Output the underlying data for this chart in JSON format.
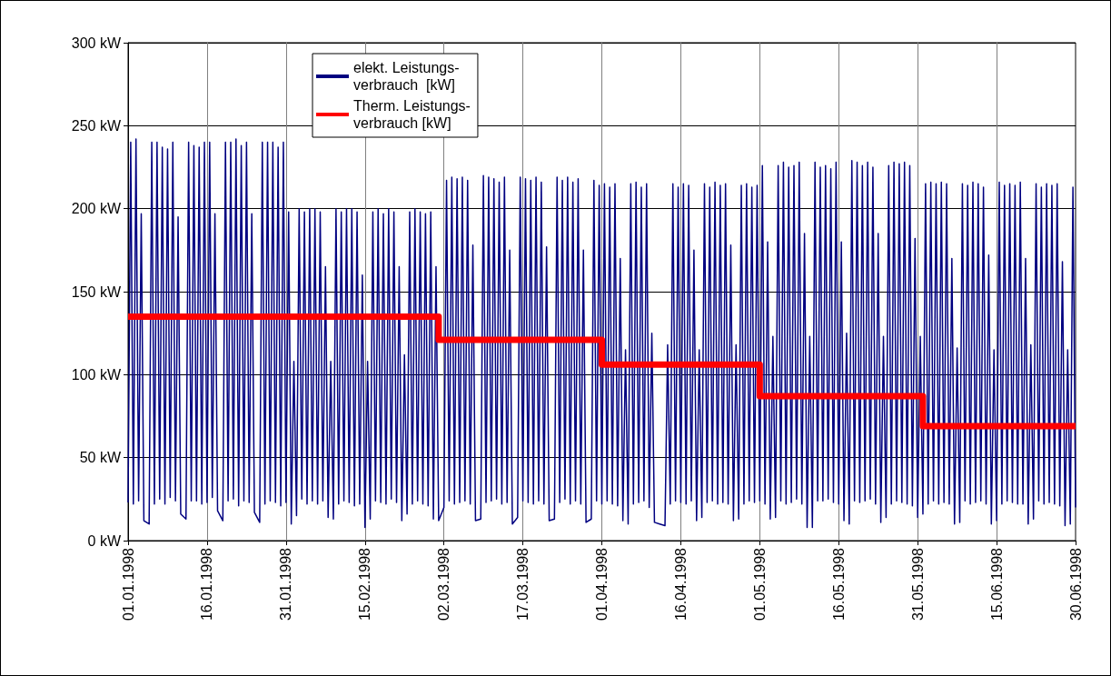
{
  "chart_data": {
    "type": "line",
    "series": [
      {
        "name": "elekt. Leistungs-\nverbrauch  [kW]",
        "color": "#000080",
        "x": [
          "1998-01-01T00:00",
          "1998-01-01T12:00",
          "1998-01-02T00:00",
          "1998-01-02T12:00",
          "1998-01-03T00:00",
          "1998-01-03T12:00",
          "1998-01-04T00:00",
          "1998-01-05T00:00",
          "1998-01-05T12:00",
          "1998-01-06T00:00",
          "1998-01-06T12:00",
          "1998-01-07T00:00",
          "1998-01-07T12:00",
          "1998-01-08T00:00",
          "1998-01-08T12:00",
          "1998-01-09T00:00",
          "1998-01-09T12:00",
          "1998-01-10T00:00",
          "1998-01-10T12:00",
          "1998-01-11T00:00",
          "1998-01-12T00:00",
          "1998-01-12T12:00",
          "1998-01-13T00:00",
          "1998-01-13T12:00",
          "1998-01-14T00:00",
          "1998-01-14T12:00",
          "1998-01-15T00:00",
          "1998-01-15T12:00",
          "1998-01-16T00:00",
          "1998-01-16T12:00",
          "1998-01-17T00:00",
          "1998-01-17T12:00",
          "1998-01-18T00:00",
          "1998-01-19T00:00",
          "1998-01-19T12:00",
          "1998-01-20T00:00",
          "1998-01-20T12:00",
          "1998-01-21T00:00",
          "1998-01-21T12:00",
          "1998-01-22T00:00",
          "1998-01-22T12:00",
          "1998-01-23T00:00",
          "1998-01-23T12:00",
          "1998-01-24T00:00",
          "1998-01-24T12:00",
          "1998-01-25T00:00",
          "1998-01-26T00:00",
          "1998-01-26T12:00",
          "1998-01-27T00:00",
          "1998-01-27T12:00",
          "1998-01-28T00:00",
          "1998-01-28T12:00",
          "1998-01-29T00:00",
          "1998-01-29T12:00",
          "1998-01-30T00:00",
          "1998-01-30T12:00",
          "1998-01-31T00:00",
          "1998-01-31T12:00",
          "1998-02-01T00:00",
          "1998-02-01T12:00",
          "1998-02-02T00:00",
          "1998-02-02T12:00",
          "1998-02-03T00:00",
          "1998-02-03T12:00",
          "1998-02-04T00:00",
          "1998-02-04T12:00",
          "1998-02-05T00:00",
          "1998-02-05T12:00",
          "1998-02-06T00:00",
          "1998-02-06T12:00",
          "1998-02-07T00:00",
          "1998-02-07T12:00",
          "1998-02-08T00:00",
          "1998-02-08T12:00",
          "1998-02-09T00:00",
          "1998-02-09T12:00",
          "1998-02-10T00:00",
          "1998-02-10T12:00",
          "1998-02-11T00:00",
          "1998-02-11T12:00",
          "1998-02-12T00:00",
          "1998-02-12T12:00",
          "1998-02-13T00:00",
          "1998-02-13T12:00",
          "1998-02-14T00:00",
          "1998-02-14T12:00",
          "1998-02-15T00:00",
          "1998-02-15T12:00",
          "1998-02-16T00:00",
          "1998-02-16T12:00",
          "1998-02-17T00:00",
          "1998-02-17T12:00",
          "1998-02-18T00:00",
          "1998-02-18T12:00",
          "1998-02-19T00:00",
          "1998-02-19T12:00",
          "1998-02-20T00:00",
          "1998-02-20T12:00",
          "1998-02-21T00:00",
          "1998-02-21T12:00",
          "1998-02-22T00:00",
          "1998-02-22T12:00",
          "1998-02-23T00:00",
          "1998-02-23T12:00",
          "1998-02-24T00:00",
          "1998-02-24T12:00",
          "1998-02-25T00:00",
          "1998-02-25T12:00",
          "1998-02-26T00:00",
          "1998-02-26T12:00",
          "1998-02-27T00:00",
          "1998-02-27T12:00",
          "1998-02-28T00:00",
          "1998-02-28T12:00",
          "1998-03-01T00:00",
          "1998-03-02T00:00",
          "1998-03-02T12:00",
          "1998-03-03T00:00",
          "1998-03-03T12:00",
          "1998-03-04T00:00",
          "1998-03-04T12:00",
          "1998-03-05T00:00",
          "1998-03-05T12:00",
          "1998-03-06T00:00",
          "1998-03-06T12:00",
          "1998-03-07T00:00",
          "1998-03-07T12:00",
          "1998-03-08T00:00",
          "1998-03-09T00:00",
          "1998-03-09T12:00",
          "1998-03-10T00:00",
          "1998-03-10T12:00",
          "1998-03-11T00:00",
          "1998-03-11T12:00",
          "1998-03-12T00:00",
          "1998-03-12T12:00",
          "1998-03-13T00:00",
          "1998-03-13T12:00",
          "1998-03-14T00:00",
          "1998-03-14T12:00",
          "1998-03-15T00:00",
          "1998-03-16T00:00",
          "1998-03-16T12:00",
          "1998-03-17T00:00",
          "1998-03-17T12:00",
          "1998-03-18T00:00",
          "1998-03-18T12:00",
          "1998-03-19T00:00",
          "1998-03-19T12:00",
          "1998-03-20T00:00",
          "1998-03-20T12:00",
          "1998-03-21T00:00",
          "1998-03-21T12:00",
          "1998-03-22T00:00",
          "1998-03-23T00:00",
          "1998-03-23T12:00",
          "1998-03-24T00:00",
          "1998-03-24T12:00",
          "1998-03-25T00:00",
          "1998-03-25T12:00",
          "1998-03-26T00:00",
          "1998-03-26T12:00",
          "1998-03-27T00:00",
          "1998-03-27T12:00",
          "1998-03-28T00:00",
          "1998-03-28T12:00",
          "1998-03-29T00:00",
          "1998-03-30T00:00",
          "1998-03-30T12:00",
          "1998-03-31T00:00",
          "1998-03-31T12:00",
          "1998-04-01T00:00",
          "1998-04-01T12:00",
          "1998-04-02T00:00",
          "1998-04-02T12:00",
          "1998-04-03T00:00",
          "1998-04-03T12:00",
          "1998-04-04T00:00",
          "1998-04-04T12:00",
          "1998-04-05T00:00",
          "1998-04-05T12:00",
          "1998-04-06T00:00",
          "1998-04-06T12:00",
          "1998-04-07T00:00",
          "1998-04-07T12:00",
          "1998-04-08T00:00",
          "1998-04-08T12:00",
          "1998-04-09T00:00",
          "1998-04-09T12:00",
          "1998-04-10T00:00",
          "1998-04-10T12:00",
          "1998-04-11T00:00",
          "1998-04-12T00:00",
          "1998-04-13T00:00",
          "1998-04-13T12:00",
          "1998-04-14T00:00",
          "1998-04-14T12:00",
          "1998-04-15T00:00",
          "1998-04-15T12:00",
          "1998-04-16T00:00",
          "1998-04-16T12:00",
          "1998-04-17T00:00",
          "1998-04-17T12:00",
          "1998-04-18T00:00",
          "1998-04-18T12:00",
          "1998-04-19T00:00",
          "1998-04-19T12:00",
          "1998-04-20T00:00",
          "1998-04-20T12:00",
          "1998-04-21T00:00",
          "1998-04-21T12:00",
          "1998-04-22T00:00",
          "1998-04-22T12:00",
          "1998-04-23T00:00",
          "1998-04-23T12:00",
          "1998-04-24T00:00",
          "1998-04-24T12:00",
          "1998-04-25T00:00",
          "1998-04-25T12:00",
          "1998-04-26T00:00",
          "1998-04-26T12:00",
          "1998-04-27T00:00",
          "1998-04-27T12:00",
          "1998-04-28T00:00",
          "1998-04-28T12:00",
          "1998-04-29T00:00",
          "1998-04-29T12:00",
          "1998-04-30T00:00",
          "1998-04-30T12:00",
          "1998-05-01T00:00",
          "1998-05-01T12:00",
          "1998-05-02T00:00",
          "1998-05-02T12:00",
          "1998-05-03T00:00",
          "1998-05-03T12:00",
          "1998-05-04T00:00",
          "1998-05-04T12:00",
          "1998-05-05T00:00",
          "1998-05-05T12:00",
          "1998-05-06T00:00",
          "1998-05-06T12:00",
          "1998-05-07T00:00",
          "1998-05-07T12:00",
          "1998-05-08T00:00",
          "1998-05-08T12:00",
          "1998-05-09T00:00",
          "1998-05-09T12:00",
          "1998-05-10T00:00",
          "1998-05-10T12:00",
          "1998-05-11T00:00",
          "1998-05-11T12:00",
          "1998-05-12T00:00",
          "1998-05-12T12:00",
          "1998-05-13T00:00",
          "1998-05-13T12:00",
          "1998-05-14T00:00",
          "1998-05-14T12:00",
          "1998-05-15T00:00",
          "1998-05-15T12:00",
          "1998-05-16T00:00",
          "1998-05-16T12:00",
          "1998-05-17T00:00",
          "1998-05-17T12:00",
          "1998-05-18T00:00",
          "1998-05-18T12:00",
          "1998-05-19T00:00",
          "1998-05-19T12:00",
          "1998-05-20T00:00",
          "1998-05-20T12:00",
          "1998-05-21T00:00",
          "1998-05-21T12:00",
          "1998-05-22T00:00",
          "1998-05-22T12:00",
          "1998-05-23T00:00",
          "1998-05-23T12:00",
          "1998-05-24T00:00",
          "1998-05-24T12:00",
          "1998-05-25T00:00",
          "1998-05-25T12:00",
          "1998-05-26T00:00",
          "1998-05-26T12:00",
          "1998-05-27T00:00",
          "1998-05-27T12:00",
          "1998-05-28T00:00",
          "1998-05-28T12:00",
          "1998-05-29T00:00",
          "1998-05-29T12:00",
          "1998-05-30T00:00",
          "1998-05-30T12:00",
          "1998-05-31T00:00",
          "1998-05-31T12:00",
          "1998-06-01T00:00",
          "1998-06-01T12:00",
          "1998-06-02T00:00",
          "1998-06-02T12:00",
          "1998-06-03T00:00",
          "1998-06-03T12:00",
          "1998-06-04T00:00",
          "1998-06-04T12:00",
          "1998-06-05T00:00",
          "1998-06-05T12:00",
          "1998-06-06T00:00",
          "1998-06-06T12:00",
          "1998-06-07T00:00",
          "1998-06-07T12:00",
          "1998-06-08T00:00",
          "1998-06-08T12:00",
          "1998-06-09T00:00",
          "1998-06-09T12:00",
          "1998-06-10T00:00",
          "1998-06-10T12:00",
          "1998-06-11T00:00",
          "1998-06-11T12:00",
          "1998-06-12T00:00",
          "1998-06-12T12:00",
          "1998-06-13T00:00",
          "1998-06-13T12:00",
          "1998-06-14T00:00",
          "1998-06-14T12:00",
          "1998-06-15T00:00",
          "1998-06-15T12:00",
          "1998-06-16T00:00",
          "1998-06-16T12:00",
          "1998-06-17T00:00",
          "1998-06-17T12:00",
          "1998-06-18T00:00",
          "1998-06-18T12:00",
          "1998-06-19T00:00",
          "1998-06-19T12:00",
          "1998-06-20T00:00",
          "1998-06-20T12:00",
          "1998-06-21T00:00",
          "1998-06-21T12:00",
          "1998-06-22T00:00",
          "1998-06-22T12:00",
          "1998-06-23T00:00",
          "1998-06-23T12:00",
          "1998-06-24T00:00",
          "1998-06-24T12:00",
          "1998-06-25T00:00",
          "1998-06-25T12:00",
          "1998-06-26T00:00",
          "1998-06-26T12:00",
          "1998-06-27T00:00",
          "1998-06-27T12:00",
          "1998-06-28T00:00",
          "1998-06-28T12:00",
          "1998-06-29T00:00",
          "1998-06-29T12:00",
          "1998-06-30T00:00"
        ],
        "values": [
          23,
          240,
          22,
          242,
          24,
          197,
          12,
          10,
          240,
          22,
          240,
          25,
          237,
          22,
          236,
          26,
          240,
          24,
          195,
          16,
          13,
          240,
          24,
          238,
          24,
          237,
          22,
          240,
          23,
          240,
          26,
          197,
          18,
          12,
          240,
          24,
          240,
          25,
          242,
          21,
          238,
          24,
          240,
          23,
          197,
          17,
          11,
          240,
          22,
          240,
          24,
          240,
          23,
          237,
          21,
          240,
          23,
          198,
          10,
          108,
          15,
          200,
          25,
          198,
          22,
          200,
          24,
          200,
          22,
          198,
          24,
          165,
          14,
          108,
          13,
          200,
          22,
          198,
          24,
          200,
          23,
          200,
          21,
          198,
          22,
          160,
          8,
          108,
          13,
          198,
          24,
          200,
          23,
          197,
          22,
          200,
          25,
          198,
          23,
          165,
          12,
          112,
          16,
          198,
          22,
          200,
          24,
          198,
          22,
          197,
          21,
          198,
          13,
          165,
          12,
          20,
          217,
          24,
          219,
          22,
          218,
          23,
          219,
          24,
          217,
          22,
          178,
          12,
          13,
          220,
          23,
          219,
          24,
          218,
          25,
          216,
          22,
          219,
          23,
          175,
          10,
          14,
          219,
          24,
          218,
          23,
          217,
          22,
          219,
          24,
          216,
          22,
          177,
          12,
          13,
          219,
          23,
          217,
          25,
          219,
          22,
          216,
          24,
          218,
          22,
          175,
          11,
          13,
          217,
          24,
          214,
          22,
          215,
          24,
          213,
          22,
          215,
          21,
          170,
          12,
          115,
          10,
          215,
          22,
          216,
          23,
          213,
          24,
          215,
          20,
          125,
          11,
          10,
          9,
          118,
          22,
          215,
          24,
          213,
          23,
          215,
          22,
          214,
          24,
          175,
          12,
          115,
          14,
          215,
          23,
          213,
          24,
          216,
          22,
          214,
          23,
          215,
          22,
          178,
          12,
          118,
          13,
          214,
          22,
          215,
          24,
          213,
          23,
          214,
          24,
          226,
          22,
          180,
          13,
          123,
          14,
          226,
          24,
          228,
          22,
          225,
          23,
          226,
          25,
          228,
          22,
          185,
          8,
          123,
          8,
          228,
          24,
          225,
          24,
          226,
          25,
          224,
          23,
          228,
          22,
          180,
          12,
          125,
          10,
          229,
          24,
          228,
          23,
          226,
          24,
          228,
          25,
          225,
          22,
          185,
          11,
          123,
          14,
          226,
          22,
          228,
          24,
          227,
          23,
          228,
          22,
          226,
          21,
          182,
          14,
          123,
          16,
          215,
          22,
          216,
          24,
          215,
          22,
          216,
          23,
          215,
          22,
          170,
          10,
          116,
          11,
          215,
          24,
          214,
          22,
          216,
          23,
          215,
          24,
          213,
          22,
          172,
          10,
          115,
          12,
          216,
          22,
          214,
          24,
          215,
          23,
          214,
          22,
          216,
          22,
          170,
          10,
          118,
          13,
          215,
          24,
          213,
          22,
          215,
          23,
          214,
          22,
          215,
          21,
          168,
          9,
          115,
          10,
          213,
          20
        ]
      },
      {
        "name": "Therm. Leistungs-\nverbrauch [kW]",
        "color": "#ff0000",
        "type": "step",
        "x": [
          "1998-01-01",
          "1998-03-01",
          "1998-04-01",
          "1998-05-01",
          "1998-06-01",
          "1998-06-30"
        ],
        "values": [
          135,
          121,
          106,
          87,
          69,
          69
        ]
      }
    ],
    "xlim": [
      "1998-01-01",
      "1998-06-30"
    ],
    "xticks": [
      {
        "value": "1998-01-01",
        "label": "01.01.1998"
      },
      {
        "value": "1998-01-16",
        "label": "16.01.1998"
      },
      {
        "value": "1998-01-31",
        "label": "31.01.1998"
      },
      {
        "value": "1998-02-15",
        "label": "15.02.1998"
      },
      {
        "value": "1998-03-02",
        "label": "02.03.1998"
      },
      {
        "value": "1998-03-17",
        "label": "17.03.1998"
      },
      {
        "value": "1998-04-01",
        "label": "01.04.1998"
      },
      {
        "value": "1998-04-16",
        "label": "16.04.1998"
      },
      {
        "value": "1998-05-01",
        "label": "01.05.1998"
      },
      {
        "value": "1998-05-16",
        "label": "16.05.1998"
      },
      {
        "value": "1998-05-31",
        "label": "31.05.1998"
      },
      {
        "value": "1998-06-15",
        "label": "15.06.1998"
      },
      {
        "value": "1998-06-30",
        "label": "30.06.1998"
      }
    ],
    "ylim": [
      0,
      300
    ],
    "yticks": [
      {
        "value": 0,
        "label": "0 kW"
      },
      {
        "value": 50,
        "label": "50 kW"
      },
      {
        "value": 100,
        "label": "100 kW"
      },
      {
        "value": 150,
        "label": "150 kW"
      },
      {
        "value": 200,
        "label": "200 kW"
      },
      {
        "value": 250,
        "label": "250 kW"
      },
      {
        "value": 300,
        "label": "300 kW"
      }
    ],
    "grid": true,
    "legend": "top left",
    "marker": "none",
    "line_style": "solid"
  }
}
